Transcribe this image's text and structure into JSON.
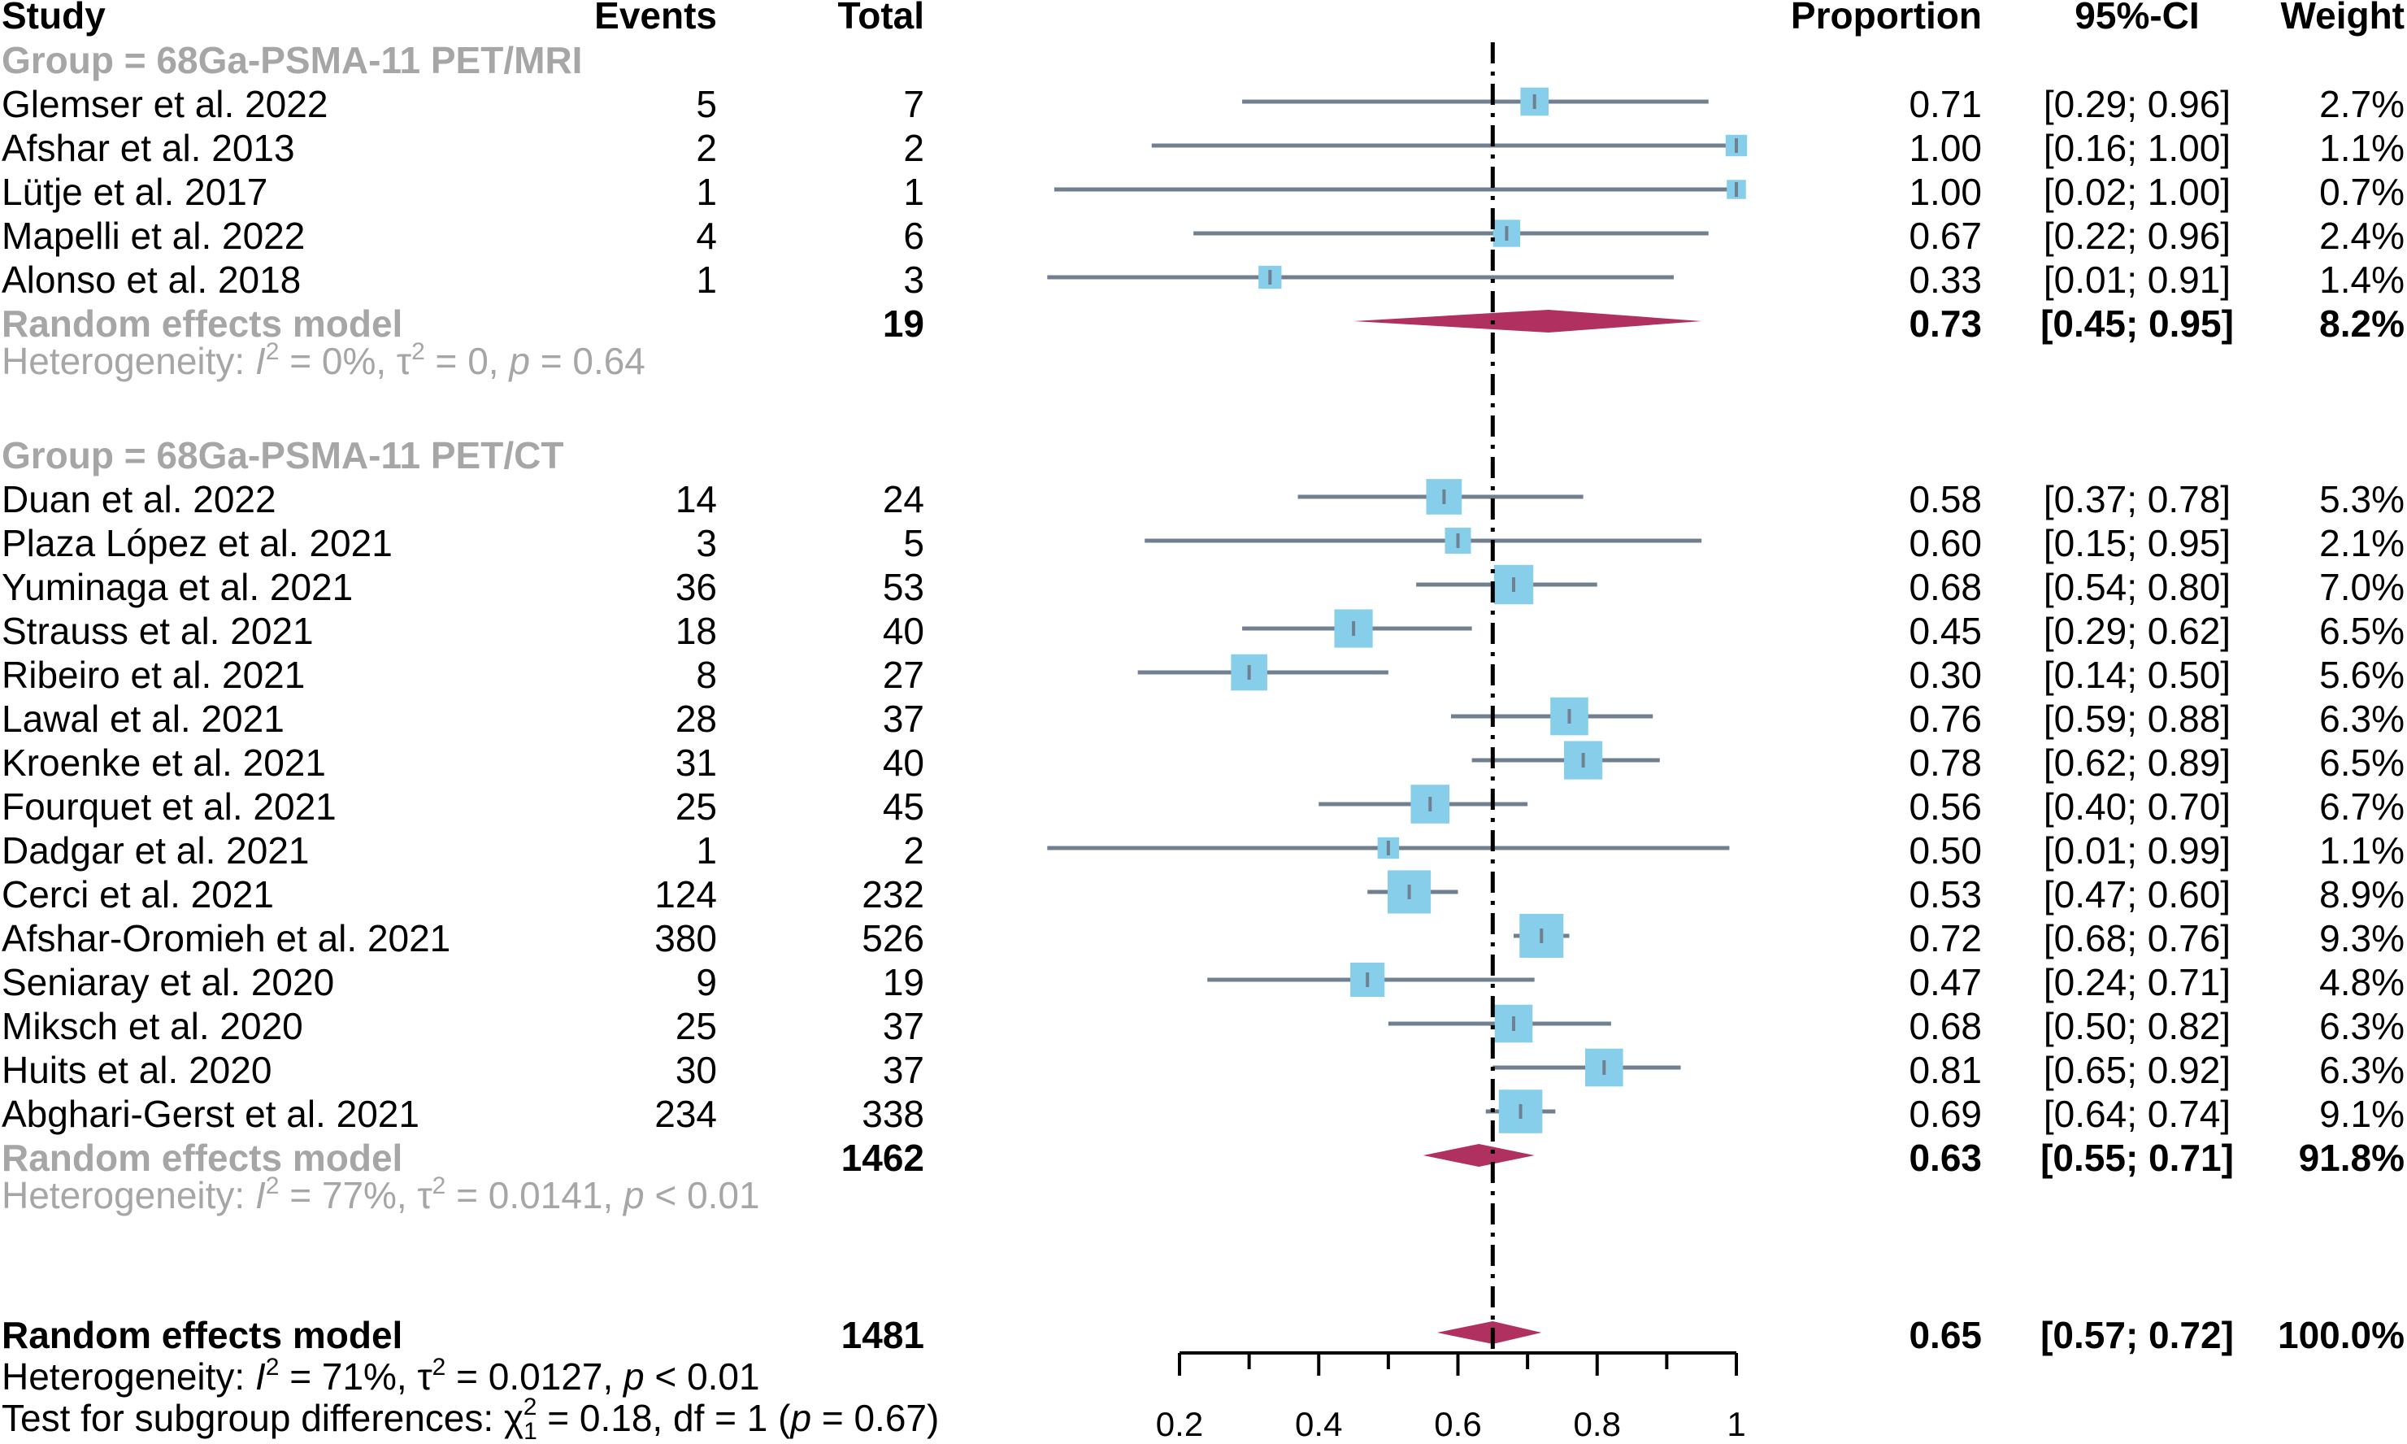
{
  "chart_data": {
    "type": "forest",
    "null_line": 0.65,
    "xlim": [
      0.2,
      1
    ],
    "xticks": [
      "0.2",
      "0.4",
      "0.6",
      "0.8",
      "1"
    ],
    "columns": {
      "study": "Study",
      "events": "Events",
      "total": "Total",
      "proportion": "Proportion",
      "ci": "95%-CI",
      "weight": "Weight"
    },
    "groups": [
      {
        "label": "Group = 68Ga-PSMA-11 PET/MRI",
        "studies": [
          {
            "name": "Glemser et al. 2022",
            "events": "5",
            "total": "7",
            "prop": 0.71,
            "lo": 0.29,
            "hi": 0.96,
            "weight_pct": 2.7,
            "prop_text": "0.71",
            "ci_text": "[0.29; 0.96]",
            "weight_text": "2.7%"
          },
          {
            "name": " Afshar et al. 2013",
            "events": "2",
            "total": "2",
            "prop": 1.0,
            "lo": 0.16,
            "hi": 1.0,
            "weight_pct": 1.1,
            "prop_text": "1.00",
            "ci_text": "[0.16; 1.00]",
            "weight_text": "1.1%"
          },
          {
            "name": " Lütje et al. 2017",
            "events": "1",
            "total": "1",
            "prop": 1.0,
            "lo": 0.02,
            "hi": 1.0,
            "weight_pct": 0.7,
            "prop_text": "1.00",
            "ci_text": "[0.02; 1.00]",
            "weight_text": "0.7%"
          },
          {
            "name": " Mapelli et al. 2022",
            "events": "4",
            "total": "6",
            "prop": 0.67,
            "lo": 0.22,
            "hi": 0.96,
            "weight_pct": 2.4,
            "prop_text": "0.67",
            "ci_text": "[0.22; 0.96]",
            "weight_text": "2.4%"
          },
          {
            "name": "Alonso et al. 2018",
            "events": "1",
            "total": "3",
            "prop": 0.33,
            "lo": 0.01,
            "hi": 0.91,
            "weight_pct": 1.4,
            "prop_text": "0.33",
            "ci_text": "[0.01; 0.91]",
            "weight_text": "1.4%"
          }
        ],
        "pooled": {
          "label": "Random effects model",
          "total": "19",
          "prop": 0.73,
          "lo": 0.45,
          "hi": 0.95,
          "prop_text": "0.73",
          "ci_text": "[0.45; 0.95]",
          "weight_text": "8.2%"
        },
        "heterogeneity": {
          "prefix": "Heterogeneity: ",
          "i2": "I",
          "i2_value": " = 0%, τ",
          "tau2_value": " = 0, ",
          "p": "p",
          "p_value": " = 0.64"
        }
      },
      {
        "label": "Group = 68Ga-PSMA-11 PET/CT",
        "studies": [
          {
            "name": "Duan et al. 2022",
            "events": "14",
            "total": "24",
            "prop": 0.58,
            "lo": 0.37,
            "hi": 0.78,
            "weight_pct": 5.3,
            "prop_text": "0.58",
            "ci_text": "[0.37; 0.78]",
            "weight_text": "5.3%"
          },
          {
            "name": "Plaza López  et al. 2021",
            "events": "3",
            "total": "5",
            "prop": 0.6,
            "lo": 0.15,
            "hi": 0.95,
            "weight_pct": 2.1,
            "prop_text": "0.60",
            "ci_text": "[0.15; 0.95]",
            "weight_text": "2.1%"
          },
          {
            "name": "Yuminaga et al. 2021",
            "events": "36",
            "total": "53",
            "prop": 0.68,
            "lo": 0.54,
            "hi": 0.8,
            "weight_pct": 7.0,
            "prop_text": "0.68",
            "ci_text": "[0.54; 0.80]",
            "weight_text": "7.0%"
          },
          {
            "name": "Strauss et al. 2021",
            "events": "18",
            "total": "40",
            "prop": 0.45,
            "lo": 0.29,
            "hi": 0.62,
            "weight_pct": 6.5,
            "prop_text": "0.45",
            "ci_text": "[0.29; 0.62]",
            "weight_text": "6.5%"
          },
          {
            "name": "Ribeiro et al. 2021",
            "events": "8",
            "total": "27",
            "prop": 0.3,
            "lo": 0.14,
            "hi": 0.5,
            "weight_pct": 5.6,
            "prop_text": "0.30",
            "ci_text": "[0.14; 0.50]",
            "weight_text": "5.6%"
          },
          {
            "name": "Lawal et al. 2021",
            "events": "28",
            "total": "37",
            "prop": 0.76,
            "lo": 0.59,
            "hi": 0.88,
            "weight_pct": 6.3,
            "prop_text": "0.76",
            "ci_text": "[0.59; 0.88]",
            "weight_text": "6.3%"
          },
          {
            "name": "Kroenke et al. 2021",
            "events": "31",
            "total": "40",
            "prop": 0.78,
            "lo": 0.62,
            "hi": 0.89,
            "weight_pct": 6.5,
            "prop_text": "0.78",
            "ci_text": "[0.62; 0.89]",
            "weight_text": "6.5%"
          },
          {
            "name": "Fourquet et al. 2021",
            "events": "25",
            "total": "45",
            "prop": 0.56,
            "lo": 0.4,
            "hi": 0.7,
            "weight_pct": 6.7,
            "prop_text": "0.56",
            "ci_text": "[0.40; 0.70]",
            "weight_text": "6.7%"
          },
          {
            "name": "Dadgar et al. 2021",
            "events": "1",
            "total": "2",
            "prop": 0.5,
            "lo": 0.01,
            "hi": 0.99,
            "weight_pct": 1.1,
            "prop_text": "0.50",
            "ci_text": "[0.01; 0.99]",
            "weight_text": "1.1%"
          },
          {
            "name": "Cerci et al. 2021",
            "events": "124",
            "total": "232",
            "prop": 0.53,
            "lo": 0.47,
            "hi": 0.6,
            "weight_pct": 8.9,
            "prop_text": "0.53",
            "ci_text": "[0.47; 0.60]",
            "weight_text": "8.9%"
          },
          {
            "name": "Afshar-Oromieh et al. 2021",
            "events": "380",
            "total": "526",
            "prop": 0.72,
            "lo": 0.68,
            "hi": 0.76,
            "weight_pct": 9.3,
            "prop_text": "0.72",
            "ci_text": "[0.68; 0.76]",
            "weight_text": "9.3%"
          },
          {
            "name": "Seniaray et al. 2020",
            "events": "9",
            "total": "19",
            "prop": 0.47,
            "lo": 0.24,
            "hi": 0.71,
            "weight_pct": 4.8,
            "prop_text": "0.47",
            "ci_text": "[0.24; 0.71]",
            "weight_text": "4.8%"
          },
          {
            "name": "Miksch et al. 2020",
            "events": "25",
            "total": "37",
            "prop": 0.68,
            "lo": 0.5,
            "hi": 0.82,
            "weight_pct": 6.3,
            "prop_text": "0.68",
            "ci_text": "[0.50; 0.82]",
            "weight_text": "6.3%"
          },
          {
            "name": "Huits et al. 2020",
            "events": "30",
            "total": "37",
            "prop": 0.81,
            "lo": 0.65,
            "hi": 0.92,
            "weight_pct": 6.3,
            "prop_text": "0.81",
            "ci_text": "[0.65; 0.92]",
            "weight_text": "6.3%"
          },
          {
            "name": "Abghari-Gerst et al. 2021",
            "events": "234",
            "total": "338",
            "prop": 0.69,
            "lo": 0.64,
            "hi": 0.74,
            "weight_pct": 9.1,
            "prop_text": "0.69",
            "ci_text": "[0.64; 0.74]",
            "weight_text": "9.1%"
          }
        ],
        "pooled": {
          "label": "Random effects model",
          "total": "1462",
          "prop": 0.63,
          "lo": 0.55,
          "hi": 0.71,
          "prop_text": "0.63",
          "ci_text": "[0.55; 0.71]",
          "weight_text": "91.8%"
        },
        "heterogeneity": {
          "prefix": "Heterogeneity: ",
          "i2": "I",
          "i2_value": " = 77%, τ",
          "tau2_value": " = 0.0141, ",
          "p": "p",
          "p_value": " < 0.01"
        }
      }
    ],
    "overall": {
      "label": "Random effects model",
      "total": "1481",
      "prop": 0.65,
      "lo": 0.57,
      "hi": 0.72,
      "prop_text": "0.65",
      "ci_text": "[0.57; 0.72]",
      "weight_text": "100.0%",
      "heterogeneity": {
        "prefix": "Heterogeneity: ",
        "i2": "I",
        "i2_value": " = 71%, τ",
        "tau2_value": " = 0.0127, ",
        "p": "p",
        "p_value": " < 0.01"
      },
      "subgroup_test": {
        "prefix": "Test for subgroup differences: χ",
        "sub": "1",
        "sup": "2",
        "stat": " = 0.18, df = 1 (",
        "p": "p",
        "p_value": " = 0.67)"
      }
    },
    "exponent": "2",
    "colors": {
      "square": "#87ceeb",
      "ci_line": "#708090",
      "diamond": "#b03060",
      "group_label": "#a6a6a6",
      "text": "#000000"
    }
  }
}
